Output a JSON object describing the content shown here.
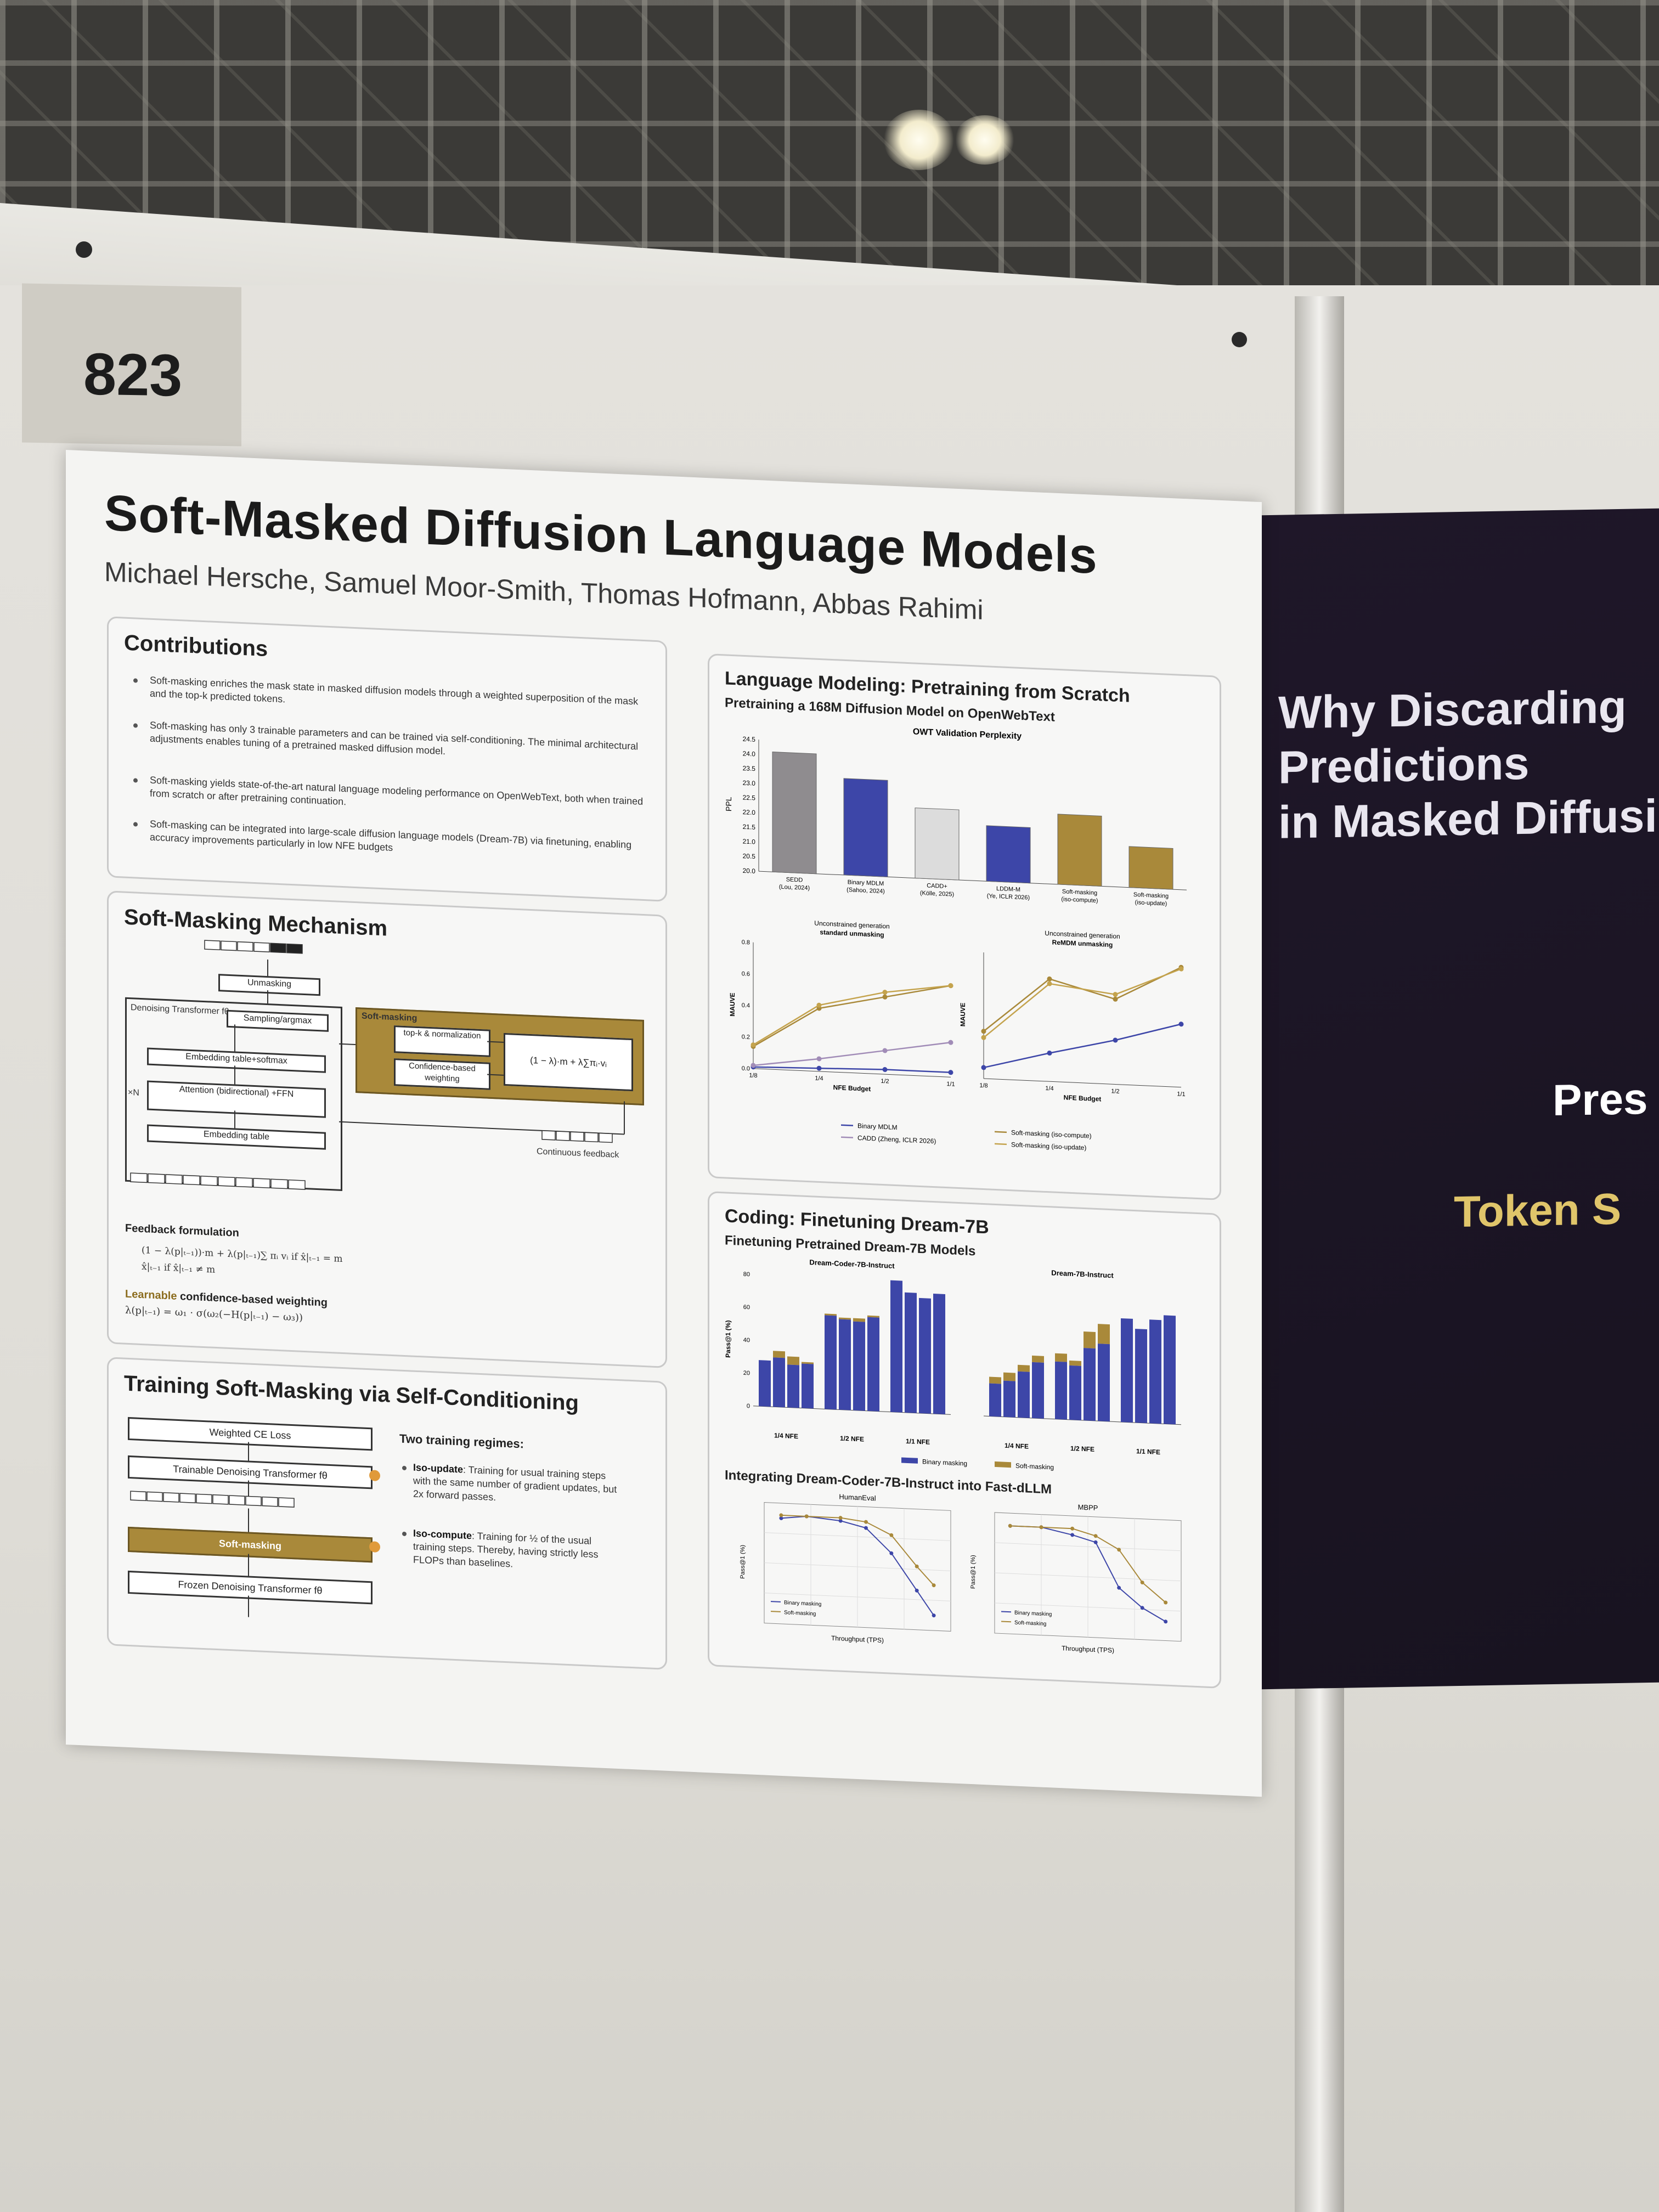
{
  "booth_number": "823",
  "poster": {
    "title": "Soft-Masked Diffusion Language Models",
    "authors": "Michael Hersche, Samuel Moor-Smith, Thomas Hofmann, Abbas Rahimi",
    "contributions": {
      "heading": "Contributions",
      "bullets": [
        "Soft-masking enriches the mask state in masked diffusion models through a weighted superposition of the mask and the top-k predicted tokens.",
        "Soft-masking has only 3 trainable parameters and can be trained via self-conditioning. The minimal architectural adjustments enables tuning of a pretrained masked diffusion model.",
        "Soft-masking yields state-of-the-art natural language modeling performance on OpenWebText, both when trained from scratch or after pretraining continuation.",
        "Soft-masking can be integrated into large-scale diffusion language models (Dream-7B) via finetuning, enabling accuracy improvements particularly in low NFE budgets"
      ]
    },
    "mechanism": {
      "heading": "Soft-Masking Mechanism",
      "labels": {
        "unmasking": "Unmasking",
        "denoising": "Denoising Transformer fθ",
        "sampling": "Sampling/argmax",
        "embedding_softmax": "Embedding table+softmax",
        "attention": "Attention (bidirectional) +FFN",
        "embedding": "Embedding table",
        "nx": "×N",
        "soft_masking": "Soft-masking",
        "topk": "top-k & normalization",
        "confidence": "Confidence-based weighting",
        "formula": "(1 − λ)·m + λ∑πᵢ·vᵢ",
        "feedback": "Continuous feedback"
      },
      "feedback_heading": "Feedback formulation",
      "feedback_formula_1": "(1 − λ(p|ₜ₋₁))·m + λ(p|ₜ₋₁)∑ πᵢ vᵢ   if x̂|ₜ₋₁ = m",
      "feedback_formula_2": "x̂|ₜ₋₁   if x̂|ₜ₋₁ ≠ m",
      "weighting_heading_gold": "Learnable",
      "weighting_heading_rest": " confidence-based weighting",
      "weighting_formula": "λ(p|ₜ₋₁) = ω₁ · σ(ω₂(−H(p|ₜ₋₁) − ω₃))"
    },
    "training": {
      "heading": "Training Soft-Masking via Self-Conditioning",
      "diagram": {
        "loss": "Weighted CE Loss",
        "trainable": "Trainable Denoising Transformer fθ",
        "soft_masking": "Soft-masking",
        "frozen": "Frozen Denoising Transformer fθ"
      },
      "regimes_heading": "Two training regimes:",
      "regimes": [
        {
          "name": "Iso-update",
          "text": ": Training for usual training steps with the same number of gradient updates, but 2x forward passes."
        },
        {
          "name": "Iso-compute",
          "text": ": Training for ½ of the usual training steps. Thereby, having strictly less FLOPs than baselines."
        }
      ]
    },
    "lm": {
      "heading": "Language Modeling: Pretraining from Scratch",
      "subheading": "Pretraining a 168M Diffusion Model on OpenWebText"
    },
    "coding": {
      "heading": "Coding: Finetuning Dream-7B",
      "subheading": "Finetuning Pretrained Dream-7B Models",
      "fast_heading": "Integrating Dream-Coder-7B-Instruct into Fast-dLLM"
    }
  },
  "neighbor_poster": {
    "title_lines": [
      "Why Discarding",
      "Predictions",
      "in Masked Diffusi"
    ],
    "pres": "Pres",
    "token": "Token S"
  },
  "chart_data": [
    {
      "type": "bar",
      "title": "OWT Validation Perplexity",
      "ylabel": "PPL",
      "categories": [
        "SEDD (Lou, 2024)",
        "Binary MDLM (Sahoo, 2024)",
        "CADD+ (Kölle, 2025)",
        "LDDM-M (Ye, ICLR 2026)",
        "Soft-masking (iso-compute)",
        "Soft-masking (iso-update)"
      ],
      "values": [
        24.1,
        23.3,
        22.4,
        21.9,
        22.4,
        21.4
      ],
      "colors": [
        "#8f8c8f",
        "#3d46a8",
        "#dcdcdc",
        "#3d46a8",
        "#a9893a",
        "#a9893a"
      ],
      "ylim": [
        20.0,
        24.5
      ],
      "yticks": [
        "20.0",
        "20.5",
        "21.0",
        "21.5",
        "22.0",
        "22.5",
        "23.0",
        "23.5",
        "24.0",
        "24.5"
      ]
    },
    {
      "type": "line",
      "title": "Unconstrained generation standard unmasking",
      "xlabel": "NFE Budget",
      "ylabel": "MAUVE",
      "x": [
        "1/8",
        "1/4",
        "1/2",
        "1/1"
      ],
      "ylim": [
        0.0,
        0.8
      ],
      "yticks": [
        "0.0",
        "0.2",
        "0.4",
        "0.6",
        "0.8"
      ],
      "series": [
        {
          "name": "Binary MDLM",
          "values": [
            0.01,
            0.02,
            0.03,
            0.03
          ],
          "color": "#3d46a8"
        },
        {
          "name": "CADD (Zheng, ICLR 2026)",
          "values": [
            0.02,
            0.08,
            0.15,
            0.22
          ],
          "color": "#a18cb7"
        },
        {
          "name": "Soft-masking (iso-compute)",
          "values": [
            0.14,
            0.4,
            0.49,
            0.58
          ],
          "color": "#a9893a"
        },
        {
          "name": "Soft-masking (iso-update)",
          "values": [
            0.15,
            0.42,
            0.52,
            0.58
          ],
          "color": "#c4a34d"
        }
      ]
    },
    {
      "type": "line",
      "title": "Unconstrained generation ReMDM unmasking",
      "xlabel": "NFE Budget",
      "ylabel": "MAUVE",
      "x": [
        "1/8",
        "1/4",
        "1/2",
        "1/1"
      ],
      "ylim": [
        0.0,
        0.8
      ],
      "series": [
        {
          "name": "Binary MDLM",
          "values": [
            0.07,
            0.18,
            0.28,
            0.4
          ],
          "color": "#3d46a8"
        },
        {
          "name": "Soft-masking (iso-compute)",
          "values": [
            0.3,
            0.65,
            0.54,
            0.76
          ],
          "color": "#a9893a"
        },
        {
          "name": "Soft-masking (iso-update)",
          "values": [
            0.26,
            0.62,
            0.57,
            0.75
          ],
          "color": "#c4a34d"
        }
      ]
    },
    {
      "type": "bar",
      "title": "Dream-Coder-7B-Instruct",
      "ylabel": "Pass@1 (%)",
      "ylim": [
        0,
        80
      ],
      "group_labels": [
        "1/4 NFE",
        "1/2 NFE",
        "1/1 NFE"
      ],
      "series": [
        {
          "name": "Binary masking",
          "values": [
            [
              28,
              30,
              26,
              27
            ],
            [
              57,
              55,
              54,
              57
            ],
            [
              80,
              73,
              70,
              73
            ]
          ],
          "color": "#3d46a8"
        },
        {
          "name": "Soft-masking",
          "values": [
            [
              28,
              34,
              31,
              28
            ],
            [
              58,
              56,
              56,
              58
            ],
            [
              80,
              73,
              70,
              73
            ]
          ],
          "color": "#a9893a"
        }
      ]
    },
    {
      "type": "bar",
      "title": "Dream-7B-Instruct",
      "ylabel": "Pass@1 (%)",
      "ylim": [
        0,
        80
      ],
      "group_labels": [
        "1/4 NFE",
        "1/2 NFE",
        "1/1 NFE"
      ],
      "series": [
        {
          "name": "Binary masking",
          "values": [
            [
              20,
              22,
              28,
              34
            ],
            [
              35,
              33,
              44,
              47
            ],
            [
              63,
              57,
              63,
              66
            ]
          ],
          "color": "#3d46a8"
        },
        {
          "name": "Soft-masking",
          "values": [
            [
              24,
              27,
              32,
              38
            ],
            [
              40,
              36,
              54,
              59
            ],
            [
              63,
              57,
              63,
              66
            ]
          ],
          "color": "#a9893a"
        }
      ]
    },
    {
      "type": "line",
      "title": "HumanEval",
      "xlabel": "Throughput (TPS)",
      "ylabel": "Pass@1 (%)",
      "series": [
        {
          "name": "Binary masking",
          "color": "#3d46a8",
          "points": [
            [
              60,
              70
            ],
            [
              75,
              71
            ],
            [
              95,
              70
            ],
            [
              110,
              68
            ],
            [
              125,
              60
            ],
            [
              140,
              48
            ],
            [
              150,
              40
            ]
          ]
        },
        {
          "name": "Soft-masking",
          "color": "#a9893a",
          "points": [
            [
              60,
              71
            ],
            [
              75,
              71
            ],
            [
              95,
              71
            ],
            [
              110,
              70
            ],
            [
              125,
              66
            ],
            [
              140,
              56
            ],
            [
              150,
              50
            ]
          ]
        }
      ]
    },
    {
      "type": "line",
      "title": "MBPP",
      "xlabel": "Throughput (TPS)",
      "ylabel": "Pass@1 (%)",
      "series": [
        {
          "name": "Binary masking",
          "color": "#3d46a8",
          "points": [
            [
              60,
              61
            ],
            [
              80,
              61
            ],
            [
              100,
              60
            ],
            [
              115,
              59
            ],
            [
              130,
              52
            ],
            [
              145,
              49
            ],
            [
              160,
              47
            ]
          ]
        },
        {
          "name": "Soft-masking",
          "color": "#a9893a",
          "points": [
            [
              60,
              61
            ],
            [
              80,
              61
            ],
            [
              100,
              61
            ],
            [
              115,
              60
            ],
            [
              130,
              58
            ],
            [
              145,
              53
            ],
            [
              160,
              50
            ]
          ]
        }
      ]
    }
  ]
}
